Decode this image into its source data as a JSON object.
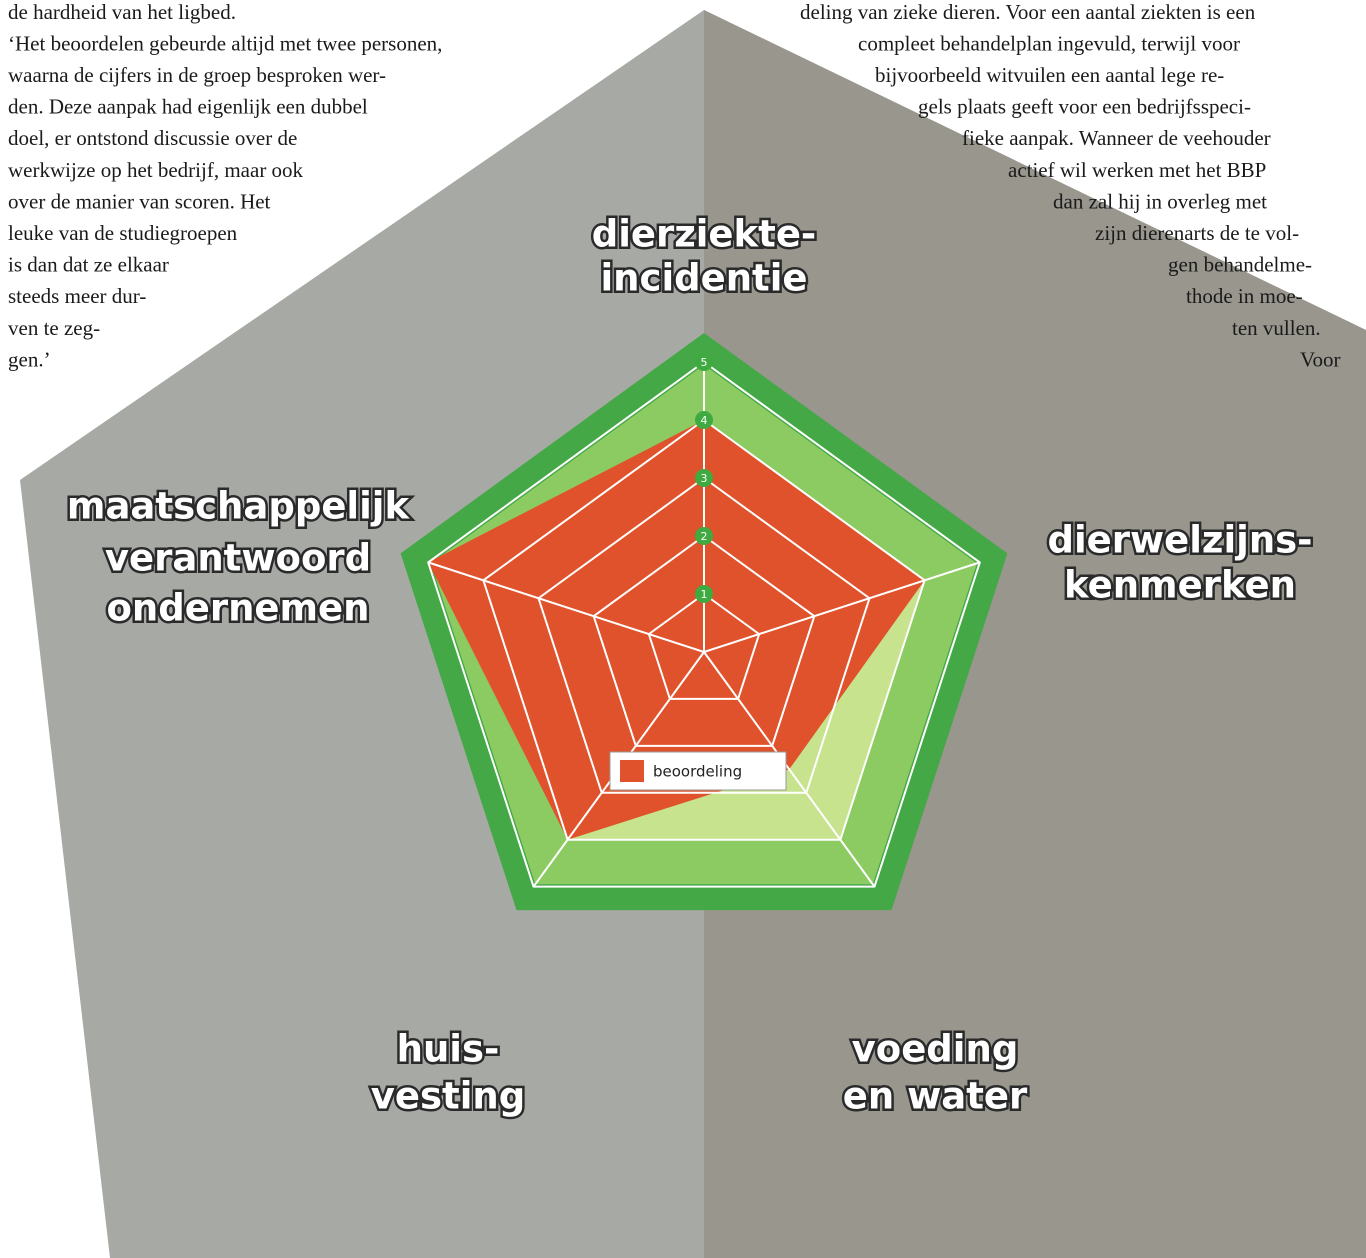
{
  "left_text": [
    "de hardheid van het ligbed.",
    "‘Het beoordelen gebeurde altijd met twee personen,",
    "waarna de cijfers in de groep besproken wer-",
    "den. Deze aanpak had eigenlijk een dubbel",
    "doel, er ontstond discussie over de",
    "werkwijze op het bedrijf, maar ook",
    "over de manier van scoren. Het",
    "leuke van de studiegroepen",
    "is dan dat ze elkaar",
    "steeds meer dur-",
    "ven te zeg-",
    "gen.’"
  ],
  "right_text": [
    "deling van zieke dieren. Voor een aantal ziekten is een",
    "compleet behandelplan ingevuld, terwijl voor",
    "bijvoorbeeld witvuilen een aantal lege re-",
    "gels plaats geeft voor een bedrijfsspeci-",
    "fieke aanpak. Wanneer de veehouder",
    "actief wil werken met het BBP",
    "dan zal hij in overleg met",
    "zijn dierenarts de te vol-",
    "gen behandelme-",
    "thode in moe-",
    "ten vullen.",
    "Voor"
  ],
  "chart_data": {
    "type": "radar",
    "categories": [
      [
        "dierziekte-",
        "incidentie"
      ],
      [
        "dierwelzijns-",
        "kenmerken"
      ],
      [
        "voeding",
        "en water"
      ],
      [
        "huis-",
        "vesting"
      ],
      [
        "maatschappelijk",
        "verantwoord",
        "ondernemen"
      ]
    ],
    "series": [
      {
        "name": "beoordeling",
        "color": "#e0522b",
        "values": [
          4,
          4,
          2.5,
          4,
          5
        ]
      }
    ],
    "rlim": [
      0,
      5
    ],
    "rticks": [
      1,
      2,
      3,
      4,
      5
    ]
  }
}
